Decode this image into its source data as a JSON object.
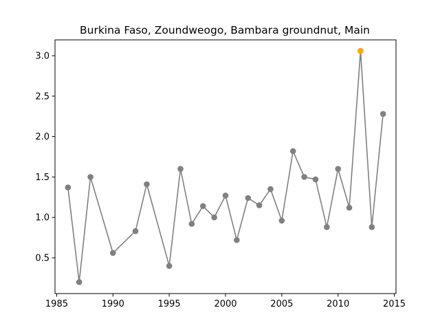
{
  "chart_data": {
    "type": "line",
    "title": "Burkina Faso, Zoundweogo, Bambara groundnut, Main",
    "xlabel": "",
    "ylabel": "",
    "xlim": [
      1984.85,
      2015.15
    ],
    "ylim": [
      0.058,
      3.196
    ],
    "xticks": [
      1985,
      1990,
      1995,
      2000,
      2005,
      2010,
      2015
    ],
    "yticks": [
      0.5,
      1.0,
      1.5,
      2.0,
      2.5,
      3.0
    ],
    "xtick_labels": [
      "1985",
      "1990",
      "1995",
      "2000",
      "2005",
      "2010",
      "2015"
    ],
    "ytick_labels": [
      "0.5",
      "1.0",
      "1.5",
      "2.0",
      "2.5",
      "3.0"
    ],
    "grid": false,
    "series": [
      {
        "color": "#808080",
        "x": [
          1986,
          1987,
          1988,
          1990,
          1992,
          1993,
          1995,
          1996,
          1997,
          1998,
          1999,
          2000,
          2001,
          2002,
          2003,
          2004,
          2005,
          2006,
          2007,
          2008,
          2009,
          2010,
          2011,
          2012,
          2013,
          2014
        ],
        "y": [
          1.37,
          0.2,
          1.5,
          0.56,
          0.83,
          1.41,
          0.4,
          1.6,
          0.92,
          1.14,
          1.0,
          1.27,
          0.72,
          1.24,
          1.15,
          1.35,
          0.96,
          1.82,
          1.5,
          1.47,
          0.88,
          1.6,
          1.12,
          3.06,
          0.88,
          2.28
        ]
      }
    ],
    "highlight": {
      "x": 2012,
      "y": 3.06,
      "color": "#ffa500"
    }
  }
}
